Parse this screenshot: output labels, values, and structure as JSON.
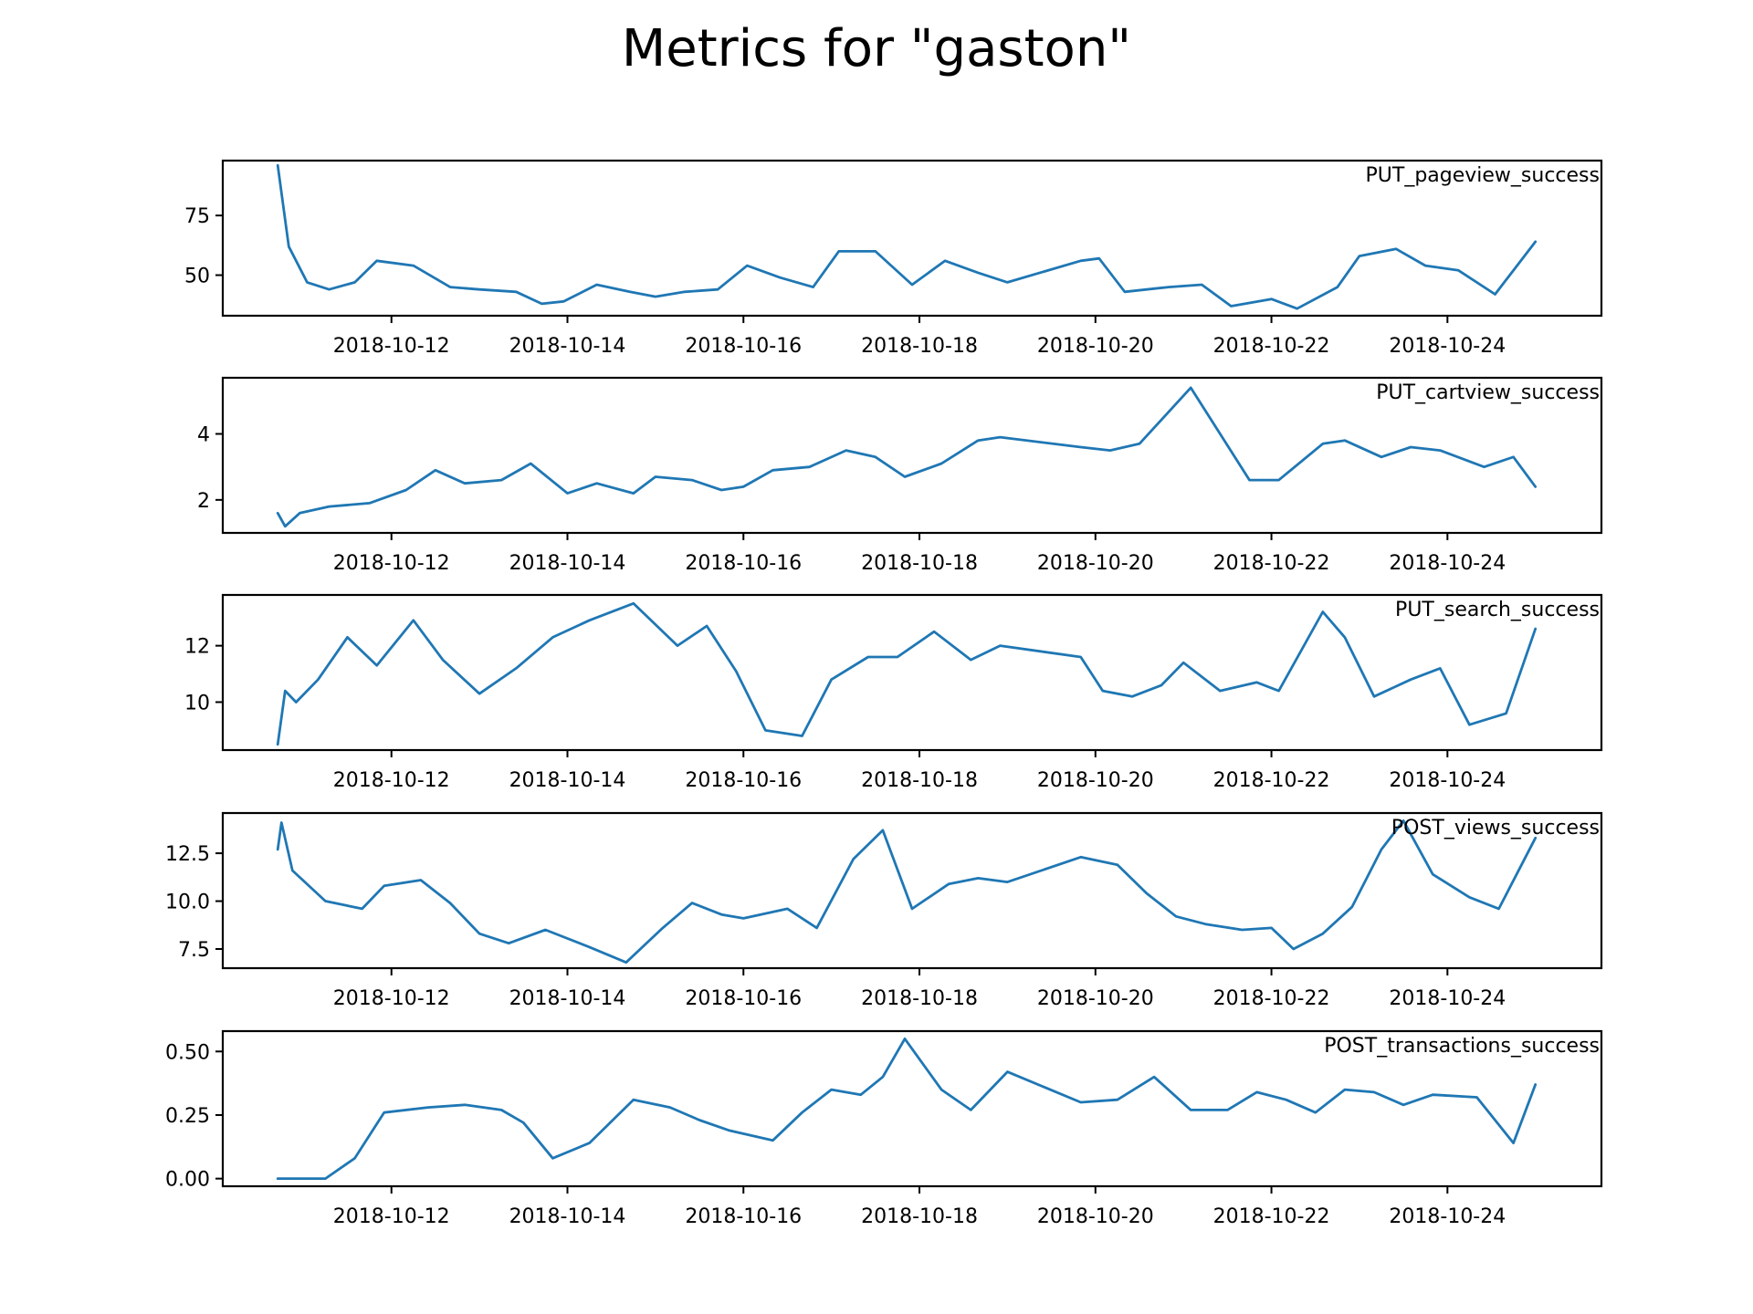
{
  "title": "Metrics for \"gaston\"",
  "colors": {
    "line": "#1f77b4",
    "axes": "#000000",
    "background": "#ffffff"
  },
  "chart_data": [
    {
      "type": "line",
      "label": "PUT_pageview_success",
      "xlim": [
        "2018-10-10T02:00",
        "2018-10-25T18:00"
      ],
      "xticks": [
        "2018-10-12",
        "2018-10-14",
        "2018-10-16",
        "2018-10-18",
        "2018-10-20",
        "2018-10-22",
        "2018-10-24"
      ],
      "ylim": [
        33,
        98
      ],
      "yticks": [
        50,
        75
      ],
      "ytick_labels": [
        "50",
        "75"
      ],
      "x": [
        "2018-10-10T17:00",
        "2018-10-10T20:00",
        "2018-10-11T01:00",
        "2018-10-11T07:00",
        "2018-10-11T14:00",
        "2018-10-11T20:00",
        "2018-10-12T06:00",
        "2018-10-12T16:00",
        "2018-10-13T00:00",
        "2018-10-13T10:00",
        "2018-10-13T17:00",
        "2018-10-13T23:00",
        "2018-10-14T08:00",
        "2018-10-14T17:00",
        "2018-10-15T00:00",
        "2018-10-15T08:00",
        "2018-10-15T17:00",
        "2018-10-16T01:00",
        "2018-10-16T10:00",
        "2018-10-16T19:00",
        "2018-10-17T02:00",
        "2018-10-17T12:00",
        "2018-10-17T22:00",
        "2018-10-18T07:00",
        "2018-10-18T16:00",
        "2018-10-19T00:00",
        "2018-10-19T20:00",
        "2018-10-20T01:00",
        "2018-10-20T08:00",
        "2018-10-20T20:00",
        "2018-10-21T05:00",
        "2018-10-21T13:00",
        "2018-10-22T00:00",
        "2018-10-22T07:00",
        "2018-10-22T18:00",
        "2018-10-23T00:00",
        "2018-10-23T10:00",
        "2018-10-23T18:00",
        "2018-10-24T03:00",
        "2018-10-24T13:00",
        "2018-10-25T00:00"
      ],
      "y": [
        96,
        62,
        47,
        44,
        47,
        56,
        54,
        45,
        44,
        43,
        38,
        39,
        46,
        43,
        41,
        43,
        44,
        54,
        49,
        45,
        60,
        60,
        46,
        56,
        51,
        47,
        56,
        57,
        43,
        45,
        46,
        37,
        40,
        36,
        45,
        58,
        61,
        54,
        52,
        42,
        64
      ]
    },
    {
      "type": "line",
      "label": "PUT_cartview_success",
      "xlim": [
        "2018-10-10T02:00",
        "2018-10-25T18:00"
      ],
      "xticks": [
        "2018-10-12",
        "2018-10-14",
        "2018-10-16",
        "2018-10-18",
        "2018-10-20",
        "2018-10-22",
        "2018-10-24"
      ],
      "ylim": [
        1.0,
        5.7
      ],
      "yticks": [
        2,
        4
      ],
      "ytick_labels": [
        "2",
        "4"
      ],
      "x": [
        "2018-10-10T17:00",
        "2018-10-10T19:00",
        "2018-10-10T23:00",
        "2018-10-11T07:00",
        "2018-10-11T18:00",
        "2018-10-12T04:00",
        "2018-10-12T12:00",
        "2018-10-12T20:00",
        "2018-10-13T06:00",
        "2018-10-13T14:00",
        "2018-10-14T00:00",
        "2018-10-14T08:00",
        "2018-10-14T18:00",
        "2018-10-15T00:00",
        "2018-10-15T10:00",
        "2018-10-15T18:00",
        "2018-10-16T00:00",
        "2018-10-16T08:00",
        "2018-10-16T18:00",
        "2018-10-17T04:00",
        "2018-10-17T12:00",
        "2018-10-17T20:00",
        "2018-10-18T06:00",
        "2018-10-18T16:00",
        "2018-10-18T22:00",
        "2018-10-19T20:00",
        "2018-10-20T04:00",
        "2018-10-20T12:00",
        "2018-10-21T02:00",
        "2018-10-21T18:00",
        "2018-10-22T02:00",
        "2018-10-22T14:00",
        "2018-10-22T20:00",
        "2018-10-23T06:00",
        "2018-10-23T14:00",
        "2018-10-23T22:00",
        "2018-10-24T10:00",
        "2018-10-24T18:00",
        "2018-10-25T00:00"
      ],
      "y": [
        1.6,
        1.2,
        1.6,
        1.8,
        1.9,
        2.3,
        2.9,
        2.5,
        2.6,
        3.1,
        2.2,
        2.5,
        2.2,
        2.7,
        2.6,
        2.3,
        2.4,
        2.9,
        3.0,
        3.5,
        3.3,
        2.7,
        3.1,
        3.8,
        3.9,
        3.6,
        3.5,
        3.7,
        5.4,
        2.6,
        2.6,
        3.7,
        3.8,
        3.3,
        3.6,
        3.5,
        3.0,
        3.3,
        2.4
      ]
    },
    {
      "type": "line",
      "label": "PUT_search_success",
      "xlim": [
        "2018-10-10T02:00",
        "2018-10-25T18:00"
      ],
      "xticks": [
        "2018-10-12",
        "2018-10-14",
        "2018-10-16",
        "2018-10-18",
        "2018-10-20",
        "2018-10-22",
        "2018-10-24"
      ],
      "ylim": [
        8.3,
        13.8
      ],
      "yticks": [
        10,
        12
      ],
      "ytick_labels": [
        "10",
        "12"
      ],
      "x": [
        "2018-10-10T17:00",
        "2018-10-10T19:00",
        "2018-10-10T22:00",
        "2018-10-11T04:00",
        "2018-10-11T12:00",
        "2018-10-11T20:00",
        "2018-10-12T06:00",
        "2018-10-12T14:00",
        "2018-10-13T00:00",
        "2018-10-13T10:00",
        "2018-10-13T20:00",
        "2018-10-14T06:00",
        "2018-10-14T18:00",
        "2018-10-15T06:00",
        "2018-10-15T14:00",
        "2018-10-15T22:00",
        "2018-10-16T06:00",
        "2018-10-16T16:00",
        "2018-10-17T00:00",
        "2018-10-17T10:00",
        "2018-10-17T18:00",
        "2018-10-18T04:00",
        "2018-10-18T14:00",
        "2018-10-18T22:00",
        "2018-10-19T20:00",
        "2018-10-20T02:00",
        "2018-10-20T10:00",
        "2018-10-20T18:00",
        "2018-10-21T00:00",
        "2018-10-21T10:00",
        "2018-10-21T20:00",
        "2018-10-22T02:00",
        "2018-10-22T14:00",
        "2018-10-22T20:00",
        "2018-10-23T04:00",
        "2018-10-23T14:00",
        "2018-10-23T22:00",
        "2018-10-24T06:00",
        "2018-10-24T16:00",
        "2018-10-25T00:00"
      ],
      "y": [
        8.5,
        10.4,
        10.0,
        10.8,
        12.3,
        11.3,
        12.9,
        11.5,
        10.3,
        11.2,
        12.3,
        12.9,
        13.5,
        12.0,
        12.7,
        11.1,
        9.0,
        8.8,
        10.8,
        11.6,
        11.6,
        12.5,
        11.5,
        12.0,
        11.6,
        10.4,
        10.2,
        10.6,
        11.4,
        10.4,
        10.7,
        10.4,
        13.2,
        12.3,
        10.2,
        10.8,
        11.2,
        9.2,
        9.6,
        12.6
      ]
    },
    {
      "type": "line",
      "label": "POST_views_success",
      "xlim": [
        "2018-10-10T02:00",
        "2018-10-25T18:00"
      ],
      "xticks": [
        "2018-10-12",
        "2018-10-14",
        "2018-10-16",
        "2018-10-18",
        "2018-10-20",
        "2018-10-22",
        "2018-10-24"
      ],
      "ylim": [
        6.5,
        14.6
      ],
      "yticks": [
        7.5,
        10,
        12.5
      ],
      "ytick_labels": [
        "7.5",
        "10.0",
        "12.5"
      ],
      "x": [
        "2018-10-10T17:00",
        "2018-10-10T18:00",
        "2018-10-10T21:00",
        "2018-10-11T06:00",
        "2018-10-11T16:00",
        "2018-10-11T22:00",
        "2018-10-12T08:00",
        "2018-10-12T16:00",
        "2018-10-13T00:00",
        "2018-10-13T08:00",
        "2018-10-13T18:00",
        "2018-10-14T06:00",
        "2018-10-14T16:00",
        "2018-10-15T02:00",
        "2018-10-15T10:00",
        "2018-10-15T18:00",
        "2018-10-16T00:00",
        "2018-10-16T12:00",
        "2018-10-16T20:00",
        "2018-10-17T06:00",
        "2018-10-17T14:00",
        "2018-10-17T22:00",
        "2018-10-18T08:00",
        "2018-10-18T16:00",
        "2018-10-19T00:00",
        "2018-10-19T20:00",
        "2018-10-20T06:00",
        "2018-10-20T14:00",
        "2018-10-20T22:00",
        "2018-10-21T06:00",
        "2018-10-21T16:00",
        "2018-10-22T00:00",
        "2018-10-22T06:00",
        "2018-10-22T14:00",
        "2018-10-22T22:00",
        "2018-10-23T06:00",
        "2018-10-23T12:00",
        "2018-10-23T20:00",
        "2018-10-24T06:00",
        "2018-10-24T14:00",
        "2018-10-25T00:00"
      ],
      "y": [
        12.7,
        14.1,
        11.6,
        10.0,
        9.6,
        10.8,
        11.1,
        9.9,
        8.3,
        7.8,
        8.5,
        7.6,
        6.8,
        8.6,
        9.9,
        9.3,
        9.1,
        9.6,
        8.6,
        12.2,
        13.7,
        9.6,
        10.9,
        11.2,
        11.0,
        12.3,
        11.9,
        10.4,
        9.2,
        8.8,
        8.5,
        8.6,
        7.5,
        8.3,
        9.7,
        12.7,
        14.2,
        11.4,
        10.2,
        9.6,
        13.3
      ]
    },
    {
      "type": "line",
      "label": "POST_transactions_success",
      "xlim": [
        "2018-10-10T02:00",
        "2018-10-25T18:00"
      ],
      "xticks": [
        "2018-10-12",
        "2018-10-14",
        "2018-10-16",
        "2018-10-18",
        "2018-10-20",
        "2018-10-22",
        "2018-10-24"
      ],
      "ylim": [
        -0.03,
        0.58
      ],
      "yticks": [
        0,
        0.25,
        0.5
      ],
      "ytick_labels": [
        "0.00",
        "0.25",
        "0.50"
      ],
      "x": [
        "2018-10-10T17:00",
        "2018-10-11T06:00",
        "2018-10-11T14:00",
        "2018-10-11T22:00",
        "2018-10-12T10:00",
        "2018-10-12T20:00",
        "2018-10-13T06:00",
        "2018-10-13T12:00",
        "2018-10-13T20:00",
        "2018-10-14T06:00",
        "2018-10-14T18:00",
        "2018-10-15T04:00",
        "2018-10-15T12:00",
        "2018-10-15T20:00",
        "2018-10-16T08:00",
        "2018-10-16T16:00",
        "2018-10-17T00:00",
        "2018-10-17T08:00",
        "2018-10-17T14:00",
        "2018-10-17T20:00",
        "2018-10-18T06:00",
        "2018-10-18T14:00",
        "2018-10-19T00:00",
        "2018-10-19T20:00",
        "2018-10-20T06:00",
        "2018-10-20T16:00",
        "2018-10-21T02:00",
        "2018-10-21T12:00",
        "2018-10-21T20:00",
        "2018-10-22T04:00",
        "2018-10-22T12:00",
        "2018-10-22T20:00",
        "2018-10-23T04:00",
        "2018-10-23T12:00",
        "2018-10-23T20:00",
        "2018-10-24T08:00",
        "2018-10-24T18:00",
        "2018-10-25T00:00"
      ],
      "y": [
        0.0,
        0.0,
        0.08,
        0.26,
        0.28,
        0.29,
        0.27,
        0.22,
        0.08,
        0.14,
        0.31,
        0.28,
        0.23,
        0.19,
        0.15,
        0.26,
        0.35,
        0.33,
        0.4,
        0.55,
        0.35,
        0.27,
        0.42,
        0.3,
        0.31,
        0.4,
        0.27,
        0.27,
        0.34,
        0.31,
        0.26,
        0.35,
        0.34,
        0.29,
        0.33,
        0.32,
        0.14,
        0.37
      ]
    }
  ]
}
